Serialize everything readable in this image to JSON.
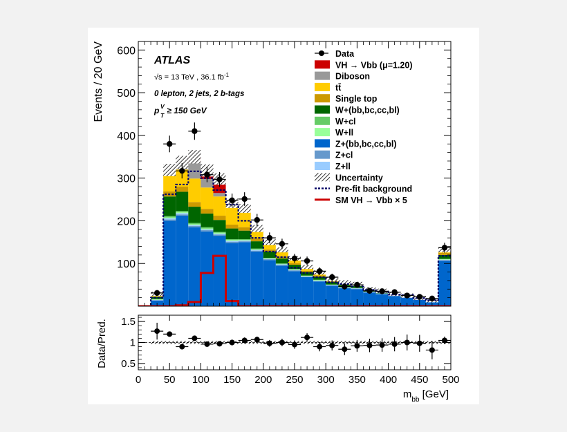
{
  "chart_data": [
    {
      "type": "area",
      "stacked": true,
      "ylabel": "Events / 20 GeV",
      "xlim": [
        0,
        500
      ],
      "ylim": [
        0,
        620
      ],
      "yticks": [
        100,
        200,
        300,
        400,
        500,
        600
      ],
      "xticks": [
        0,
        50,
        100,
        150,
        200,
        250,
        300,
        350,
        400,
        450,
        500
      ],
      "annotations": {
        "experiment": "ATLAS",
        "energy_prefix": "√s = 13 TeV , 36.1 fb",
        "energy_sup": "-1",
        "selection": "0 lepton, 2 jets, 2 b-tags",
        "ptv_p": "p",
        "ptv_sup": "V",
        "ptv_sub": "T",
        "ptv_rest": " ≥ 150 GeV"
      },
      "bin_edges": [
        0,
        20,
        40,
        60,
        80,
        100,
        120,
        140,
        160,
        180,
        200,
        220,
        240,
        260,
        280,
        300,
        320,
        340,
        360,
        380,
        400,
        420,
        440,
        460,
        480,
        500
      ],
      "legend_position": "top-right",
      "legend": [
        {
          "label": "Data",
          "kind": "marker",
          "color": "#000000"
        },
        {
          "label": "VH → Vbb (μ=1.20)",
          "kind": "fill",
          "color": "#cc0000"
        },
        {
          "label": "Diboson",
          "kind": "fill",
          "color": "#999999"
        },
        {
          "label": "tt̄",
          "kind": "fill",
          "color": "#ffcc00"
        },
        {
          "label": "Single top",
          "kind": "fill",
          "color": "#cc9900"
        },
        {
          "label": "W+(bb,bc,cc,bl)",
          "kind": "fill",
          "color": "#006600"
        },
        {
          "label": "W+cl",
          "kind": "fill",
          "color": "#66cc66"
        },
        {
          "label": "W+ll",
          "kind": "fill",
          "color": "#99ff99"
        },
        {
          "label": "Z+(bb,bc,cc,bl)",
          "kind": "fill",
          "color": "#0066cc"
        },
        {
          "label": "Z+cl",
          "kind": "fill",
          "color": "#6699cc"
        },
        {
          "label": "Z+ll",
          "kind": "fill",
          "color": "#99ccff"
        },
        {
          "label": "Uncertainty",
          "kind": "hatch",
          "color": "#000000"
        },
        {
          "label": "Pre-fit background",
          "kind": "dash",
          "color": "#000066"
        },
        {
          "label": "SM VH → Vbb × 5",
          "kind": "line",
          "color": "#cc0000"
        }
      ],
      "stack_series": [
        {
          "name": "Z+(bb,bc,cc,bl)",
          "color": "#0066cc",
          "values": [
            0,
            13,
            200,
            212,
            185,
            175,
            165,
            148,
            150,
            128,
            108,
            95,
            82,
            68,
            58,
            48,
            42,
            40,
            32,
            28,
            24,
            20,
            15,
            10,
            106
          ]
        },
        {
          "name": "Z+cl",
          "color": "#6699cc",
          "values": [
            0,
            1,
            3,
            3,
            3,
            3,
            3,
            3,
            2,
            2,
            2,
            2,
            2,
            1,
            1,
            1,
            1,
            1,
            1,
            1,
            1,
            1,
            1,
            1,
            2
          ]
        },
        {
          "name": "Z+ll",
          "color": "#99ccff",
          "values": [
            0,
            1,
            3,
            3,
            2,
            2,
            2,
            2,
            2,
            2,
            1,
            1,
            1,
            1,
            1,
            1,
            1,
            1,
            1,
            1,
            0,
            0,
            0,
            0,
            1
          ]
        },
        {
          "name": "W+ll",
          "color": "#99ff99",
          "values": [
            0,
            1,
            2,
            2,
            2,
            2,
            2,
            2,
            1,
            1,
            1,
            1,
            1,
            1,
            1,
            0,
            0,
            0,
            0,
            0,
            0,
            0,
            0,
            0,
            1
          ]
        },
        {
          "name": "W+cl",
          "color": "#66cc66",
          "values": [
            0,
            1,
            3,
            3,
            3,
            3,
            2,
            2,
            2,
            2,
            1,
            1,
            1,
            1,
            1,
            1,
            1,
            1,
            0,
            0,
            0,
            0,
            0,
            0,
            1
          ]
        },
        {
          "name": "W+(bb,bc,cc,bl)",
          "color": "#006600",
          "values": [
            0,
            5,
            46,
            45,
            38,
            32,
            28,
            25,
            20,
            17,
            15,
            12,
            10,
            8,
            7,
            6,
            5,
            4,
            3,
            3,
            2,
            2,
            2,
            1,
            9
          ]
        },
        {
          "name": "Single top",
          "color": "#cc9900",
          "values": [
            0,
            1,
            12,
            12,
            11,
            11,
            10,
            9,
            8,
            7,
            5,
            5,
            4,
            3,
            3,
            2,
            2,
            2,
            1,
            1,
            1,
            1,
            1,
            1,
            5
          ]
        },
        {
          "name": "tt̄",
          "color": "#ffcc00",
          "values": [
            0,
            5,
            43,
            40,
            55,
            50,
            45,
            45,
            42,
            22,
            16,
            14,
            10,
            9,
            7,
            5,
            4,
            3,
            2,
            2,
            1,
            1,
            1,
            1,
            6
          ]
        },
        {
          "name": "Diboson",
          "color": "#999999",
          "values": [
            0,
            1,
            6,
            15,
            37,
            20,
            8,
            3,
            1,
            1,
            1,
            1,
            1,
            0,
            0,
            0,
            0,
            0,
            0,
            0,
            0,
            0,
            0,
            0,
            1
          ]
        },
        {
          "name": "VH → Vbb (μ=1.20)",
          "color": "#cc0000",
          "values": [
            0,
            0,
            1,
            2,
            14,
            20,
            33,
            2,
            1,
            0,
            0,
            0,
            0,
            0,
            0,
            0,
            0,
            0,
            0,
            0,
            0,
            0,
            0,
            0,
            0
          ]
        }
      ],
      "prefit_background": [
        0,
        20,
        262,
        285,
        316,
        300,
        272,
        238,
        200,
        160,
        128,
        115,
        90,
        78,
        68,
        56,
        52,
        46,
        38,
        34,
        27,
        26,
        19,
        14,
        118
      ],
      "sm_vh_x5": [
        0,
        0,
        0,
        2,
        10,
        78,
        118,
        12,
        0,
        0,
        0,
        0,
        0,
        0,
        0,
        0,
        0,
        0,
        0,
        0,
        0,
        0,
        0,
        0,
        0
      ],
      "data": {
        "x": [
          30,
          50,
          70,
          90,
          110,
          130,
          150,
          170,
          190,
          210,
          230,
          250,
          270,
          290,
          310,
          330,
          350,
          370,
          390,
          410,
          430,
          450,
          470,
          490
        ],
        "y": [
          31,
          380,
          317,
          410,
          308,
          297,
          248,
          251,
          202,
          160,
          146,
          112,
          106,
          82,
          68,
          46,
          50,
          36,
          35,
          33,
          25,
          22,
          18,
          137
        ],
        "xerr": [
          10,
          10,
          10,
          10,
          10,
          10,
          10,
          10,
          10,
          10,
          10,
          10,
          10,
          10,
          10,
          10,
          10,
          10,
          10,
          10,
          10,
          10,
          10,
          10
        ]
      }
    },
    {
      "type": "scatter",
      "xlabel_main": "m",
      "xlabel_sub": "bb",
      "xlabel_unit": " [GeV]",
      "ylabel": "Data/Pred.",
      "xlim": [
        0,
        500
      ],
      "ylim": [
        0.35,
        1.65
      ],
      "yticks": [
        0.5,
        1,
        1.5
      ],
      "ytick_labels": [
        "0.5",
        "1",
        "1.5"
      ],
      "xticks": [
        0,
        50,
        100,
        150,
        200,
        250,
        300,
        350,
        400,
        450,
        500
      ],
      "xtick_labels": [
        "0",
        "50",
        "100",
        "150",
        "200",
        "250",
        "300",
        "350",
        "400",
        "450",
        "500"
      ],
      "uncertainty_band": [
        0.96,
        1.04
      ],
      "ratio": {
        "x": [
          30,
          50,
          70,
          90,
          110,
          130,
          150,
          170,
          190,
          210,
          230,
          250,
          270,
          290,
          310,
          330,
          350,
          370,
          390,
          410,
          430,
          450,
          470,
          490
        ],
        "y": [
          1.27,
          1.2,
          0.9,
          1.1,
          0.96,
          0.97,
          1.0,
          1.05,
          1.07,
          0.98,
          1.0,
          0.95,
          1.12,
          0.9,
          0.93,
          0.84,
          0.92,
          0.93,
          0.94,
          0.96,
          1.0,
          0.98,
          0.82,
          1.05
        ],
        "yerr": [
          0.2,
          0.06,
          0.06,
          0.05,
          0.06,
          0.06,
          0.07,
          0.07,
          0.07,
          0.08,
          0.09,
          0.1,
          0.1,
          0.11,
          0.12,
          0.14,
          0.14,
          0.16,
          0.16,
          0.17,
          0.19,
          0.2,
          0.22,
          0.09
        ]
      }
    }
  ]
}
